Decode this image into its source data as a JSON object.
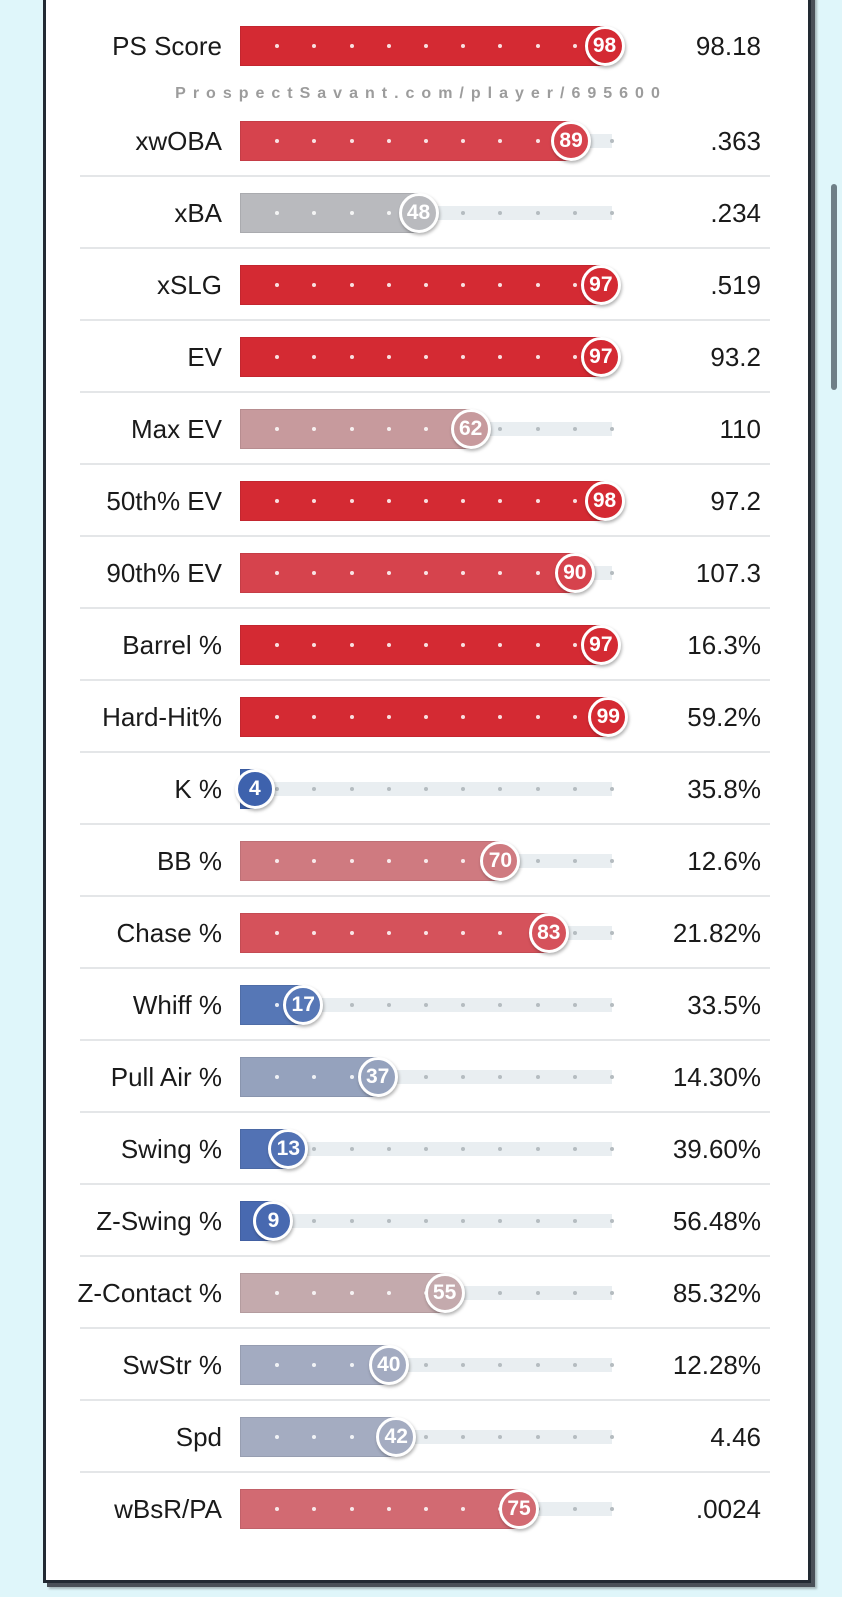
{
  "watermark": "ProspectSavant.com/player/695600",
  "chart_data": {
    "type": "bar",
    "title": "",
    "xlabel": "Percentile",
    "xlim": [
      0,
      100
    ],
    "grid": false,
    "metrics": [
      {
        "label": "PS Score",
        "percentile": 98,
        "value": "98.18",
        "color": "#d42a33"
      },
      {
        "label": "xwOBA",
        "percentile": 89,
        "value": ".363",
        "color": "#d6434d"
      },
      {
        "label": "xBA",
        "percentile": 48,
        "value": ".234",
        "color": "#b9babe"
      },
      {
        "label": "xSLG",
        "percentile": 97,
        "value": ".519",
        "color": "#d42a33"
      },
      {
        "label": "EV",
        "percentile": 97,
        "value": "93.2",
        "color": "#d42a33"
      },
      {
        "label": "Max EV",
        "percentile": 62,
        "value": "110",
        "color": "#c79a9d"
      },
      {
        "label": "50th% EV",
        "percentile": 98,
        "value": "97.2",
        "color": "#d42a33"
      },
      {
        "label": "90th% EV",
        "percentile": 90,
        "value": "107.3",
        "color": "#d6434d"
      },
      {
        "label": "Barrel %",
        "percentile": 97,
        "value": "16.3%",
        "color": "#d42a33"
      },
      {
        "label": "Hard-Hit%",
        "percentile": 99,
        "value": "59.2%",
        "color": "#d42a33"
      },
      {
        "label": "K %",
        "percentile": 4,
        "value": "35.8%",
        "color": "#3e62ad"
      },
      {
        "label": "BB %",
        "percentile": 70,
        "value": "12.6%",
        "color": "#cf7a80"
      },
      {
        "label": "Chase %",
        "percentile": 83,
        "value": "21.82%",
        "color": "#d5525b"
      },
      {
        "label": "Whiff %",
        "percentile": 17,
        "value": "33.5%",
        "color": "#5677b6"
      },
      {
        "label": "Pull Air %",
        "percentile": 37,
        "value": "14.30%",
        "color": "#95a2bd"
      },
      {
        "label": "Swing %",
        "percentile": 13,
        "value": "39.60%",
        "color": "#5272b4"
      },
      {
        "label": "Z-Swing %",
        "percentile": 9,
        "value": "56.48%",
        "color": "#4869b0"
      },
      {
        "label": "Z-Contact %",
        "percentile": 55,
        "value": "85.32%",
        "color": "#c4aaad"
      },
      {
        "label": "SwStr %",
        "percentile": 40,
        "value": "12.28%",
        "color": "#a3abc1"
      },
      {
        "label": "Spd",
        "percentile": 42,
        "value": "4.46",
        "color": "#a4acc1"
      },
      {
        "label": "wBsR/PA",
        "percentile": 75,
        "value": ".0024",
        "color": "#d26a72"
      }
    ]
  }
}
